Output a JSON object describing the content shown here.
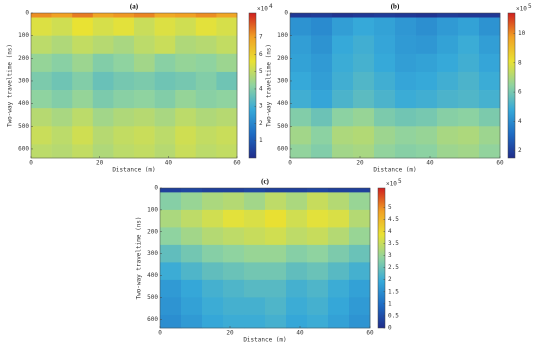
{
  "chart_data": [
    {
      "type": "heatmap",
      "title": "(a)",
      "xlabel": "Distance (m)",
      "ylabel": "Two-way traveltime (ns)",
      "xlim": [
        0,
        60
      ],
      "ylim": [
        0,
        640
      ],
      "y_inverted": true,
      "xticks": [
        0,
        20,
        40,
        60
      ],
      "yticks": [
        0,
        100,
        200,
        300,
        400,
        500,
        600
      ],
      "xbins": [
        0,
        6,
        12,
        18,
        24,
        30,
        36,
        42,
        48,
        54,
        60
      ],
      "ybins": [
        0,
        20,
        100,
        180,
        260,
        340,
        420,
        500,
        580,
        640
      ],
      "values": [
        [
          7.2,
          7.0,
          7.4,
          6.9,
          7.1,
          7.3,
          6.8,
          7.0,
          7.2,
          6.9
        ],
        [
          5.4,
          5.2,
          5.6,
          5.3,
          5.5,
          5.1,
          5.4,
          5.2,
          5.5,
          5.3
        ],
        [
          4.9,
          4.7,
          5.0,
          4.8,
          4.6,
          4.9,
          5.1,
          4.7,
          4.8,
          5.0
        ],
        [
          4.3,
          4.1,
          4.4,
          4.0,
          4.2,
          4.5,
          4.1,
          4.3,
          4.2,
          4.4
        ],
        [
          3.9,
          3.7,
          4.0,
          3.6,
          3.8,
          3.9,
          3.7,
          3.8,
          4.0,
          3.7
        ],
        [
          4.2,
          4.0,
          4.3,
          3.9,
          4.1,
          4.2,
          4.0,
          4.3,
          4.1,
          4.2
        ],
        [
          4.8,
          4.6,
          4.9,
          4.5,
          4.7,
          4.8,
          4.6,
          4.9,
          4.7,
          4.8
        ],
        [
          5.1,
          4.9,
          5.2,
          4.8,
          5.0,
          5.1,
          4.9,
          5.2,
          5.0,
          5.1
        ],
        [
          4.9,
          4.8,
          5.0,
          4.7,
          4.9,
          5.0,
          4.8,
          5.1,
          4.9,
          5.0
        ]
      ],
      "clim": [
        0,
        8.4
      ],
      "cticks": [
        1,
        2,
        3,
        4,
        5,
        6,
        7
      ],
      "colorbar_base": "×10",
      "colorbar_exponent": "4",
      "colormap": [
        "#202c8a",
        "#1e6cc4",
        "#36a9d9",
        "#8fd3a0",
        "#e9e233",
        "#f1a124",
        "#cf1f1f"
      ]
    },
    {
      "type": "heatmap",
      "title": "(b)",
      "xlabel": "Distance (m)",
      "ylabel": "Two-way traveltime (ns)",
      "xlim": [
        0,
        60
      ],
      "ylim": [
        0,
        640
      ],
      "y_inverted": true,
      "xticks": [
        0,
        20,
        40,
        60
      ],
      "yticks": [
        0,
        100,
        200,
        300,
        400,
        500,
        600
      ],
      "xbins": [
        0,
        6,
        12,
        18,
        24,
        30,
        36,
        42,
        48,
        54,
        60
      ],
      "ybins": [
        0,
        20,
        100,
        180,
        260,
        340,
        420,
        500,
        580,
        640
      ],
      "values": [
        [
          1.8,
          1.9,
          1.7,
          1.8,
          1.9,
          1.8,
          1.7,
          1.9,
          1.8,
          1.8
        ],
        [
          4.2,
          4.0,
          4.5,
          4.8,
          4.6,
          4.3,
          4.1,
          4.4,
          4.6,
          4.2
        ],
        [
          4.5,
          4.2,
          4.8,
          5.0,
          4.7,
          4.4,
          4.3,
          4.6,
          4.9,
          4.5
        ],
        [
          4.6,
          4.4,
          4.9,
          5.1,
          4.8,
          4.5,
          4.6,
          4.8,
          5.0,
          4.7
        ],
        [
          4.8,
          4.5,
          5.0,
          5.3,
          5.0,
          4.7,
          4.8,
          5.0,
          5.2,
          4.9
        ],
        [
          5.0,
          4.7,
          5.2,
          5.5,
          5.2,
          4.9,
          5.0,
          5.2,
          5.3,
          5.1
        ],
        [
          6.2,
          5.8,
          6.4,
          6.6,
          6.1,
          5.9,
          6.0,
          6.3,
          6.4,
          6.1
        ],
        [
          6.8,
          6.4,
          7.0,
          7.1,
          6.7,
          6.5,
          6.6,
          6.9,
          7.0,
          6.7
        ],
        [
          6.5,
          6.2,
          6.8,
          6.9,
          6.5,
          6.3,
          6.4,
          6.7,
          6.8,
          6.5
        ]
      ],
      "clim": [
        1.5,
        11.4
      ],
      "cticks": [
        2,
        4,
        6,
        8,
        10
      ],
      "colorbar_base": "×10",
      "colorbar_exponent": "5",
      "colormap": [
        "#202c8a",
        "#1e6cc4",
        "#36a9d9",
        "#8fd3a0",
        "#e9e233",
        "#f1a124",
        "#cf1f1f"
      ]
    },
    {
      "type": "heatmap",
      "title": "(c)",
      "xlabel": "Distance (m)",
      "ylabel": "Two-way traveltime (ns)",
      "xlim": [
        0,
        60
      ],
      "ylim": [
        0,
        640
      ],
      "y_inverted": true,
      "xticks": [
        0,
        20,
        40,
        60
      ],
      "yticks": [
        0,
        100,
        200,
        300,
        400,
        500,
        600
      ],
      "xbins": [
        0,
        6,
        12,
        18,
        24,
        30,
        36,
        42,
        48,
        54,
        60
      ],
      "ybins": [
        0,
        20,
        100,
        180,
        260,
        340,
        420,
        500,
        580,
        640
      ],
      "values": [
        [
          0.3,
          0.4,
          0.3,
          0.3,
          0.4,
          0.3,
          0.3,
          0.4,
          0.3,
          0.3
        ],
        [
          2.8,
          3.0,
          3.2,
          3.3,
          3.1,
          3.4,
          3.2,
          3.5,
          3.3,
          3.0
        ],
        [
          3.2,
          3.4,
          3.6,
          3.8,
          3.7,
          3.9,
          3.6,
          3.8,
          3.7,
          3.3
        ],
        [
          2.9,
          3.1,
          3.3,
          3.4,
          3.5,
          3.6,
          3.4,
          3.5,
          3.3,
          3.0
        ],
        [
          2.4,
          2.6,
          2.8,
          2.9,
          3.0,
          3.0,
          2.8,
          2.9,
          2.7,
          2.5
        ],
        [
          2.0,
          2.2,
          2.4,
          2.5,
          2.6,
          2.6,
          2.4,
          2.5,
          2.3,
          2.1
        ],
        [
          1.7,
          1.9,
          2.1,
          2.2,
          2.3,
          2.3,
          2.1,
          2.2,
          2.0,
          1.8
        ],
        [
          1.6,
          1.8,
          2.0,
          2.1,
          2.1,
          2.2,
          2.0,
          2.1,
          1.9,
          1.7
        ],
        [
          1.5,
          1.7,
          1.9,
          2.0,
          2.0,
          2.1,
          1.9,
          2.0,
          1.8,
          1.6
        ]
      ],
      "clim": [
        0,
        5.8
      ],
      "cticks": [
        0,
        0.5,
        1,
        1.5,
        2,
        2.5,
        3,
        3.5,
        4,
        4.5,
        5
      ],
      "colorbar_base": "×10",
      "colorbar_exponent": "5",
      "colormap": [
        "#202c8a",
        "#1e6cc4",
        "#36a9d9",
        "#8fd3a0",
        "#e9e233",
        "#f1a124",
        "#cf1f1f"
      ]
    }
  ]
}
